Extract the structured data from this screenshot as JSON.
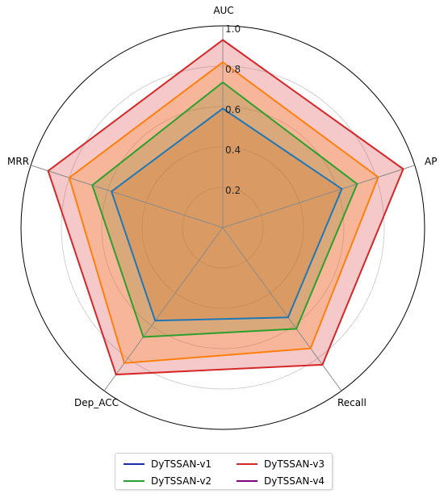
{
  "chart_data": {
    "type": "radar",
    "categories": [
      "AUC",
      "AP",
      "Recall",
      "Dep_ACC",
      "MRR"
    ],
    "rlim": [
      0,
      1.0
    ],
    "rticks": [
      0.2,
      0.4,
      0.6,
      0.8,
      1.0
    ],
    "rtick_labels": [
      "0.2",
      "0.4",
      "0.6",
      "0.8",
      "1.0"
    ],
    "grid": true,
    "legend_position": "bottom",
    "series": [
      {
        "name": "DyTSSAN-v1",
        "color": "#1f77b4",
        "legend_color": "#1a2ea8",
        "fill": "#ff7f0e",
        "values": [
          0.59,
          0.62,
          0.55,
          0.57,
          0.58
        ]
      },
      {
        "name": "DyTSSAN-v2",
        "color": "#2ca02c",
        "legend_color": "#2ca02c",
        "fill": "#2ca02c",
        "values": [
          0.72,
          0.7,
          0.62,
          0.67,
          0.68
        ]
      },
      {
        "name": "DyTSSAN-v3",
        "color": "#d62728",
        "legend_color": "#d62728",
        "fill": "#d62728",
        "values": [
          0.93,
          0.94,
          0.84,
          0.9,
          0.91
        ]
      },
      {
        "name": "DyTSSAN-v4",
        "color": "#ff7f0e",
        "legend_color": "#800080",
        "fill": "#ff7f0e",
        "values": [
          0.82,
          0.81,
          0.74,
          0.83,
          0.8
        ]
      }
    ]
  }
}
